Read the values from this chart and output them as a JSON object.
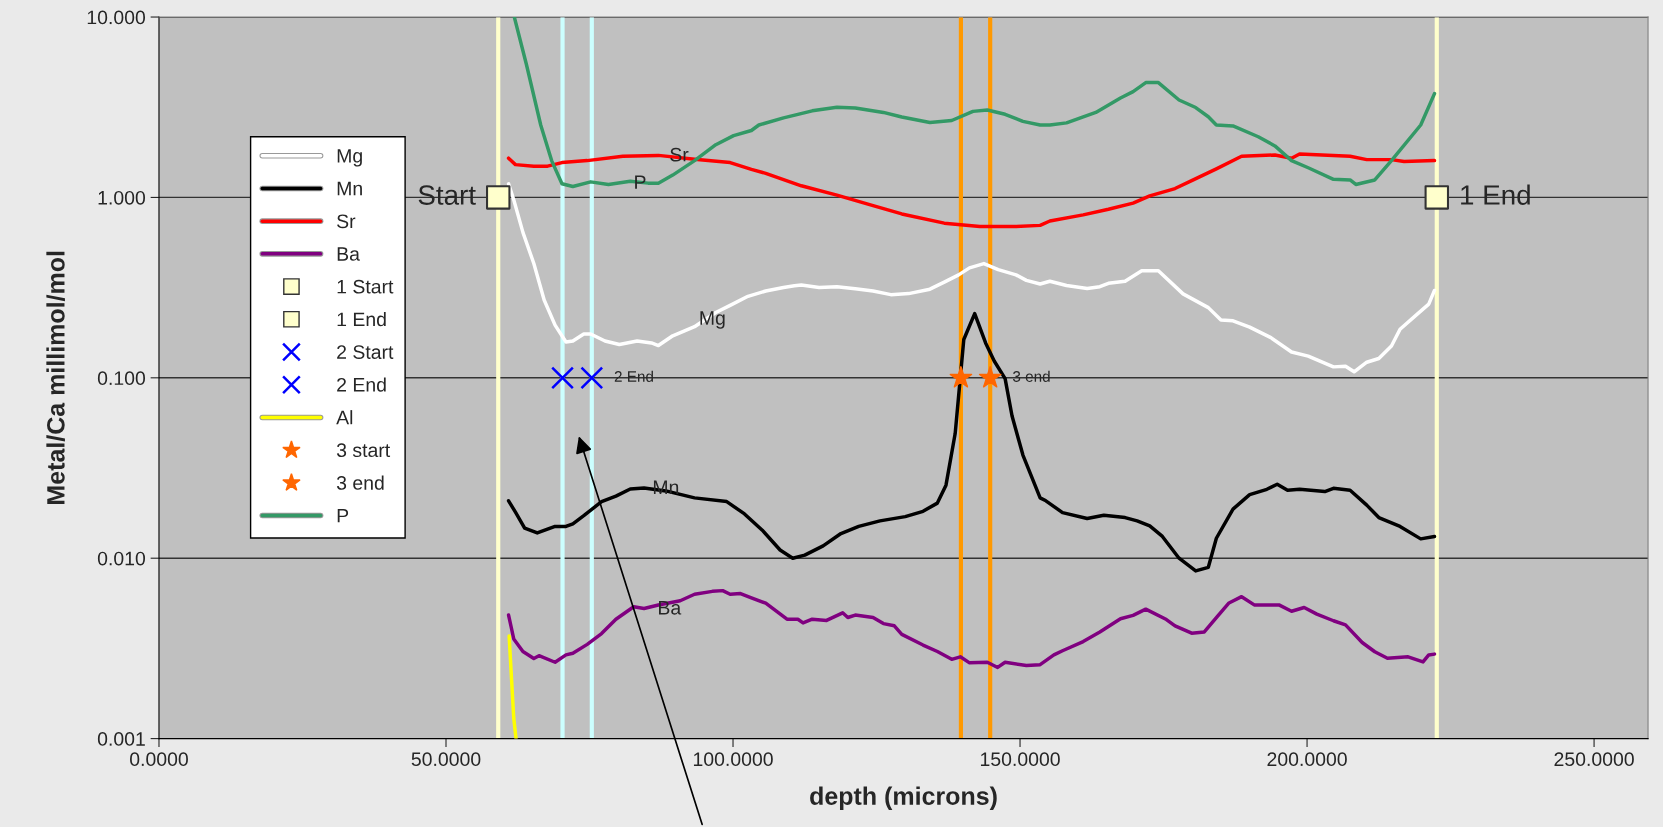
{
  "chart_data": {
    "type": "line",
    "xlabel": "depth (microns)",
    "ylabel": "Metal/Ca millimol/mol",
    "log": "y",
    "grid": "y",
    "legend": "left",
    "xlim": [
      0,
      259.4
    ],
    "xticks": [
      {
        "value": 0,
        "label": "0.0000"
      },
      {
        "value": 50,
        "label": "50.0000"
      },
      {
        "value": 100,
        "label": "100.0000"
      },
      {
        "value": 150,
        "label": "150.0000"
      },
      {
        "value": 200,
        "label": "200.0000"
      },
      {
        "value": 250,
        "label": "250.0000"
      }
    ],
    "ylim": [
      0.001,
      10
    ],
    "yticks": [
      {
        "value": 0.001,
        "label": "0.001"
      },
      {
        "value": 0.01,
        "label": "0.010"
      },
      {
        "value": 0.1,
        "label": "0.100"
      },
      {
        "value": 1,
        "label": "1.000"
      },
      {
        "value": 10,
        "label": "10.000"
      }
    ],
    "ref_lines": [
      {
        "axis": "x",
        "value": 59.1,
        "color": "#ffffcc"
      },
      {
        "axis": "x",
        "value": 70.3,
        "color": "#ccffff"
      },
      {
        "axis": "x",
        "value": 75.4,
        "color": "#ccffff"
      },
      {
        "axis": "x",
        "value": 139.7,
        "color": "#ff9900"
      },
      {
        "axis": "x",
        "value": 144.8,
        "color": "#ff9900"
      },
      {
        "axis": "x",
        "value": 222.6,
        "color": "#ffffcc"
      }
    ],
    "annotations": [
      {
        "text": "Sr",
        "x": 90.6,
        "y": 1.69
      },
      {
        "text": "P",
        "x": 83.8,
        "y": 1.19
      },
      {
        "text": "Mg",
        "x": 96.4,
        "y": 0.21
      },
      {
        "text": "Mn",
        "x": 88.3,
        "y": 0.0242
      },
      {
        "text": "Ba",
        "x": 88.9,
        "y": 0.0052
      },
      {
        "text": "Start",
        "x": 59.1,
        "y": 1
      },
      {
        "text": "1 End",
        "x": 222.6,
        "y": 1
      },
      {
        "text": "2 End",
        "x": 75.4,
        "y": 0.1
      },
      {
        "text": "3 end",
        "x": 144.8,
        "y": 0.1
      }
    ],
    "series": [
      {
        "name": "Mg",
        "type": "line",
        "color": "#ffffff",
        "x": [
          60.9,
          61.8,
          63.4,
          65.3,
          67.1,
          69.0,
          70.9,
          72.1,
          74.0,
          75.2,
          77.7,
          80.2,
          83.3,
          85.8,
          87.0,
          89.5,
          93.3,
          97.0,
          99.5,
          102.6,
          105.7,
          108.8,
          110.7,
          111.9,
          115.0,
          118.1,
          121.3,
          124.4,
          127.5,
          130.6,
          134.3,
          136.8,
          139.3,
          141.2,
          143.7,
          146.2,
          149.3,
          151.1,
          153.5,
          155.2,
          158.1,
          161.7,
          163.9,
          165.4,
          168.3,
          171.2,
          174.1,
          178.4,
          182.8,
          185.0,
          187.1,
          190.0,
          193.7,
          197.3,
          200.2,
          204.6,
          206.7,
          208.2,
          210.4,
          212.5,
          214.7,
          216.2,
          219.1,
          221.2,
          222.2
        ],
        "values": [
          1.19,
          0.97,
          0.64,
          0.43,
          0.27,
          0.196,
          0.158,
          0.16,
          0.175,
          0.175,
          0.16,
          0.153,
          0.16,
          0.156,
          0.151,
          0.171,
          0.192,
          0.23,
          0.252,
          0.283,
          0.303,
          0.317,
          0.324,
          0.327,
          0.317,
          0.32,
          0.312,
          0.303,
          0.289,
          0.293,
          0.31,
          0.339,
          0.372,
          0.407,
          0.43,
          0.398,
          0.372,
          0.347,
          0.331,
          0.343,
          0.325,
          0.313,
          0.32,
          0.334,
          0.343,
          0.392,
          0.392,
          0.292,
          0.245,
          0.209,
          0.207,
          0.191,
          0.167,
          0.139,
          0.132,
          0.115,
          0.116,
          0.108,
          0.122,
          0.128,
          0.15,
          0.186,
          0.224,
          0.256,
          0.305
        ]
      },
      {
        "name": "Mn",
        "type": "line",
        "color": "#000000",
        "x": [
          60.9,
          62.1,
          63.7,
          65.9,
          69.0,
          70.9,
          72.1,
          74.0,
          77.1,
          79.6,
          82.1,
          84.5,
          88.3,
          93.3,
          98.9,
          102.0,
          105.1,
          108.2,
          110.4,
          112.5,
          115.7,
          118.8,
          121.9,
          125.6,
          130.0,
          133.1,
          135.6,
          137.1,
          138.7,
          140.2,
          142.1,
          144.0,
          145.5,
          147.4,
          148.6,
          150.5,
          153.5,
          154.5,
          157.4,
          161.7,
          164.6,
          168.3,
          170.4,
          172.6,
          174.8,
          177.7,
          180.6,
          182.8,
          184.2,
          187.1,
          190.0,
          193.0,
          194.8,
          196.6,
          198.7,
          203.1,
          204.6,
          207.5,
          210.4,
          212.5,
          216.2,
          219.8,
          222.2
        ],
        "values": [
          0.0208,
          0.018,
          0.0147,
          0.0138,
          0.015,
          0.015,
          0.0155,
          0.0172,
          0.0206,
          0.0221,
          0.0242,
          0.0245,
          0.0236,
          0.0216,
          0.0206,
          0.0176,
          0.0143,
          0.0111,
          0.01,
          0.0104,
          0.0117,
          0.0137,
          0.015,
          0.0161,
          0.017,
          0.0182,
          0.0202,
          0.0254,
          0.0491,
          0.163,
          0.227,
          0.156,
          0.124,
          0.099,
          0.0616,
          0.0373,
          0.0216,
          0.0208,
          0.0179,
          0.0166,
          0.0173,
          0.0168,
          0.0161,
          0.0151,
          0.0132,
          0.01,
          0.0085,
          0.0089,
          0.0129,
          0.0187,
          0.0225,
          0.0241,
          0.0257,
          0.0238,
          0.0241,
          0.0234,
          0.0244,
          0.0238,
          0.0197,
          0.0168,
          0.015,
          0.0128,
          0.0132
        ]
      },
      {
        "name": "Sr",
        "type": "line",
        "color": "#ff0000",
        "x": [
          60.9,
          62.1,
          65.3,
          67.7,
          70.2,
          74.6,
          80.8,
          87.0,
          93.3,
          99.5,
          103.2,
          105.7,
          111.9,
          118.1,
          124.4,
          129.4,
          136.8,
          143.0,
          149.3,
          153.5,
          155.2,
          161.0,
          165.4,
          169.7,
          172.6,
          177.0,
          179.9,
          184.2,
          188.6,
          194.4,
          197.3,
          198.7,
          207.5,
          210.4,
          214.7,
          216.9,
          222.2
        ],
        "values": [
          1.65,
          1.52,
          1.49,
          1.49,
          1.56,
          1.6,
          1.69,
          1.71,
          1.63,
          1.56,
          1.43,
          1.36,
          1.16,
          1.03,
          0.9,
          0.81,
          0.72,
          0.69,
          0.69,
          0.7,
          0.74,
          0.8,
          0.86,
          0.93,
          1.02,
          1.12,
          1.24,
          1.44,
          1.69,
          1.72,
          1.65,
          1.74,
          1.69,
          1.62,
          1.62,
          1.58,
          1.6
        ]
      },
      {
        "name": "Ba",
        "type": "line",
        "color": "#800080",
        "x": [
          60.9,
          61.8,
          63.4,
          65.3,
          66.2,
          69.0,
          70.9,
          72.1,
          74.6,
          77.1,
          79.6,
          82.7,
          84.5,
          87.0,
          90.8,
          93.3,
          96.4,
          98.2,
          99.5,
          101.3,
          103.2,
          105.7,
          109.4,
          111.3,
          112.2,
          113.8,
          116.3,
          119.1,
          120.0,
          121.3,
          124.4,
          126.2,
          128.1,
          129.4,
          133.1,
          135.6,
          138.1,
          139.6,
          141.2,
          144.3,
          146.1,
          147.4,
          151.1,
          153.5,
          155.9,
          157.4,
          161.0,
          163.9,
          167.5,
          169.7,
          171.9,
          175.5,
          177.0,
          179.9,
          182.1,
          184.2,
          186.4,
          188.6,
          190.8,
          195.1,
          197.3,
          199.5,
          201.7,
          204.6,
          206.7,
          209.6,
          211.8,
          214.0,
          217.6,
          220.2,
          221.2,
          222.2
        ],
        "values": [
          0.00484,
          0.00357,
          0.00304,
          0.00278,
          0.00288,
          0.00265,
          0.00291,
          0.00297,
          0.00333,
          0.00382,
          0.00459,
          0.00538,
          0.00526,
          0.0055,
          0.00581,
          0.00631,
          0.00655,
          0.00661,
          0.00631,
          0.00637,
          0.00603,
          0.00563,
          0.00459,
          0.00459,
          0.00438,
          0.00459,
          0.00452,
          0.00498,
          0.00469,
          0.00484,
          0.00469,
          0.00434,
          0.00422,
          0.00378,
          0.0033,
          0.00304,
          0.00275,
          0.00284,
          0.00263,
          0.00265,
          0.00248,
          0.00265,
          0.00254,
          0.00257,
          0.00291,
          0.00307,
          0.00345,
          0.0039,
          0.00462,
          0.00482,
          0.00522,
          0.00457,
          0.00422,
          0.00384,
          0.0039,
          0.00469,
          0.00565,
          0.00612,
          0.00551,
          0.00551,
          0.00508,
          0.00533,
          0.0049,
          0.0045,
          0.00427,
          0.00341,
          0.00303,
          0.00279,
          0.00284,
          0.00266,
          0.00291,
          0.00294
        ]
      },
      {
        "name": "1 Start",
        "type": "scatter",
        "marker": "square",
        "color": "#ffffcc",
        "x": [
          59.1
        ],
        "values": [
          1
        ]
      },
      {
        "name": "1 End",
        "type": "scatter",
        "marker": "square",
        "color": "#ffffcc",
        "x": [
          222.6
        ],
        "values": [
          1
        ]
      },
      {
        "name": "2 Start",
        "type": "scatter",
        "marker": "cross",
        "color": "#0000ff",
        "x": [
          70.3
        ],
        "values": [
          0.1
        ]
      },
      {
        "name": "2 End",
        "type": "scatter",
        "marker": "cross",
        "color": "#0000ff",
        "x": [
          75.4
        ],
        "values": [
          0.1
        ]
      },
      {
        "name": "Al",
        "type": "line",
        "color": "#ffff00",
        "x": [
          61.0,
          61.8,
          62.2
        ],
        "values": [
          0.0037,
          0.0013,
          0.001
        ]
      },
      {
        "name": "3 start",
        "type": "scatter",
        "marker": "star",
        "color": "#ff6600",
        "x": [
          139.7
        ],
        "values": [
          0.1
        ]
      },
      {
        "name": "3 end",
        "type": "scatter",
        "marker": "star",
        "color": "#ff6600",
        "x": [
          144.8
        ],
        "values": [
          0.1
        ]
      },
      {
        "name": "P",
        "type": "line",
        "color": "#339966",
        "x": [
          61.9,
          64.0,
          66.5,
          68.4,
          70.2,
          72.1,
          75.2,
          78.3,
          82.1,
          85.2,
          87.0,
          89.5,
          93.3,
          97.0,
          100.1,
          103.2,
          104.5,
          108.8,
          113.8,
          118.1,
          121.3,
          126.2,
          129.4,
          134.3,
          138.1,
          141.8,
          144.3,
          147.4,
          150.5,
          153.5,
          155.2,
          158.1,
          163.2,
          167.5,
          169.7,
          171.9,
          174.1,
          177.7,
          180.6,
          182.8,
          184.2,
          187.1,
          191.5,
          194.4,
          197.3,
          200.2,
          204.6,
          207.5,
          208.5,
          211.8,
          214.7,
          219.8,
          222.2
        ],
        "values": [
          10,
          5.47,
          2.52,
          1.6,
          1.19,
          1.15,
          1.22,
          1.18,
          1.23,
          1.2,
          1.2,
          1.33,
          1.6,
          1.96,
          2.2,
          2.35,
          2.52,
          2.76,
          3.02,
          3.16,
          3.13,
          2.96,
          2.79,
          2.6,
          2.67,
          3.0,
          3.05,
          2.89,
          2.64,
          2.52,
          2.52,
          2.59,
          2.96,
          3.56,
          3.86,
          4.33,
          4.33,
          3.47,
          3.15,
          2.8,
          2.52,
          2.49,
          2.17,
          1.93,
          1.6,
          1.46,
          1.26,
          1.25,
          1.18,
          1.25,
          1.6,
          2.52,
          3.76
        ]
      }
    ]
  }
}
